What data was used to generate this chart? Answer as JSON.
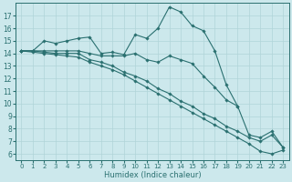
{
  "xlabel": "Humidex (Indice chaleur)",
  "bg_color": "#cce8ec",
  "grid_color": "#b0d4d8",
  "line_color": "#2a7070",
  "xlim": [
    -0.5,
    23.5
  ],
  "ylim": [
    5.5,
    18.0
  ],
  "xticks": [
    0,
    1,
    2,
    3,
    4,
    5,
    6,
    7,
    8,
    9,
    10,
    11,
    12,
    13,
    14,
    15,
    16,
    17,
    18,
    19,
    20,
    21,
    22,
    23
  ],
  "yticks": [
    6,
    7,
    8,
    9,
    10,
    11,
    12,
    13,
    14,
    15,
    16,
    17
  ],
  "series1_x": [
    0,
    1,
    2,
    3,
    4,
    5,
    6,
    7,
    8,
    9,
    10,
    11,
    12,
    13,
    14,
    15,
    16,
    17,
    18,
    19,
    20,
    21,
    22,
    23
  ],
  "series1_y": [
    14.2,
    14.2,
    15.0,
    14.8,
    15.0,
    15.2,
    15.3,
    14.0,
    14.1,
    13.9,
    15.5,
    15.2,
    16.0,
    17.7,
    17.3,
    16.2,
    15.8,
    14.2,
    11.5,
    9.8,
    null,
    null,
    null,
    null
  ],
  "series2_x": [
    0,
    1,
    2,
    3,
    4,
    5,
    6,
    7,
    8,
    9,
    10,
    11,
    12,
    13,
    14,
    15,
    16,
    17,
    18,
    19,
    20,
    21,
    22,
    23
  ],
  "series2_y": [
    14.2,
    14.2,
    14.2,
    14.2,
    14.2,
    14.2,
    14.0,
    13.8,
    13.8,
    13.8,
    14.0,
    13.5,
    13.3,
    13.8,
    13.5,
    13.2,
    12.2,
    11.3,
    10.3,
    9.8,
    7.5,
    7.3,
    7.8,
    6.5
  ],
  "series3_x": [
    0,
    1,
    2,
    3,
    4,
    5,
    6,
    7,
    8,
    9,
    10,
    11,
    12,
    13,
    14,
    15,
    16,
    17,
    18,
    19,
    20,
    21,
    22,
    23
  ],
  "series3_y": [
    14.2,
    14.2,
    14.1,
    14.0,
    14.0,
    14.0,
    13.5,
    13.3,
    13.0,
    12.5,
    12.2,
    11.8,
    11.2,
    10.8,
    10.2,
    9.8,
    9.2,
    8.8,
    8.2,
    7.8,
    7.3,
    7.0,
    7.5,
    6.5
  ],
  "series4_x": [
    0,
    1,
    2,
    3,
    4,
    5,
    6,
    7,
    8,
    9,
    10,
    11,
    12,
    13,
    14,
    15,
    16,
    17,
    18,
    19,
    20,
    21,
    22,
    23
  ],
  "series4_y": [
    14.2,
    14.1,
    14.0,
    13.9,
    13.8,
    13.7,
    13.3,
    13.0,
    12.7,
    12.3,
    11.8,
    11.3,
    10.8,
    10.3,
    9.8,
    9.3,
    8.8,
    8.3,
    7.8,
    7.3,
    6.8,
    6.2,
    6.0,
    6.3
  ]
}
